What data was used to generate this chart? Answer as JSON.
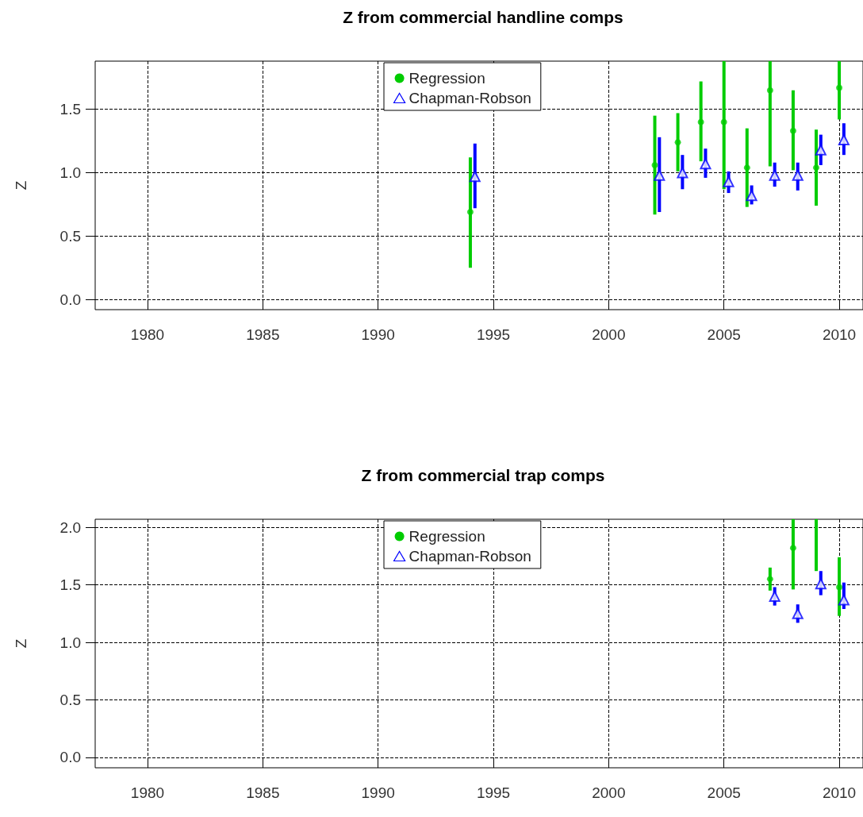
{
  "chart_data": [
    {
      "type": "scatter",
      "title": "Z from commercial handline comps",
      "ylabel": "Z",
      "xlim": [
        1977.73,
        2011.03
      ],
      "xticks": [
        1980,
        1985,
        1990,
        1995,
        2000,
        2005,
        2010
      ],
      "ylim": [
        -0.08,
        1.88
      ],
      "yticks": [
        {
          "value": 0,
          "label": "0.0"
        },
        {
          "value": 0.5,
          "label": "0.5"
        },
        {
          "value": 1,
          "label": "1.0"
        },
        {
          "value": 1.5,
          "label": "1.5"
        }
      ],
      "grid": true,
      "legend": "top",
      "line_style": "dashed",
      "series": [
        {
          "name": "Regression",
          "color": "#00cc00",
          "marker": "circle",
          "x": [
            1994,
            2002,
            2003,
            2004,
            2005,
            2006,
            2007,
            2008,
            2009,
            2010
          ],
          "values": [
            0.69,
            1.06,
            1.24,
            1.4,
            1.4,
            1.04,
            1.65,
            1.33,
            1.04,
            1.67
          ],
          "errors": [
            [
              0.25,
              1.12
            ],
            [
              0.67,
              1.45
            ],
            [
              1.01,
              1.47
            ],
            [
              1.09,
              1.72
            ],
            [
              0.87,
              1.88
            ],
            [
              0.73,
              1.35
            ],
            [
              1.05,
              1.88
            ],
            [
              1.02,
              1.65
            ],
            [
              0.74,
              1.34
            ],
            [
              1.42,
              1.88
            ]
          ]
        },
        {
          "name": "Chapman-Robson",
          "color": "#0000ff",
          "marker": "triangle",
          "x": [
            1994.2,
            2002.2,
            2003.2,
            2004.2,
            2005.2,
            2006.2,
            2007.2,
            2008.2,
            2009.2,
            2010.2
          ],
          "values": [
            0.97,
            0.98,
            1.0,
            1.07,
            0.93,
            0.82,
            0.98,
            0.98,
            1.18,
            1.26
          ],
          "errors": [
            [
              0.72,
              1.23
            ],
            [
              0.69,
              1.28
            ],
            [
              0.87,
              1.14
            ],
            [
              0.96,
              1.19
            ],
            [
              0.84,
              1.01
            ],
            [
              0.75,
              0.9
            ],
            [
              0.89,
              1.08
            ],
            [
              0.86,
              1.08
            ],
            [
              1.06,
              1.3
            ],
            [
              1.14,
              1.39
            ]
          ]
        }
      ]
    },
    {
      "type": "scatter",
      "title": "Z from commercial trap comps",
      "ylabel": "Z",
      "xlim": [
        1977.73,
        2011.03
      ],
      "xticks": [
        1980,
        1985,
        1990,
        1995,
        2000,
        2005,
        2010
      ],
      "ylim": [
        -0.09,
        2.07
      ],
      "yticks": [
        {
          "value": 0,
          "label": "0.0"
        },
        {
          "value": 0.5,
          "label": "0.5"
        },
        {
          "value": 1,
          "label": "1.0"
        },
        {
          "value": 1.5,
          "label": "1.5"
        },
        {
          "value": 2,
          "label": "2.0"
        }
      ],
      "grid": true,
      "legend": "top",
      "line_style": "dashed",
      "series": [
        {
          "name": "Regression",
          "color": "#00cc00",
          "marker": "circle",
          "x": [
            2007,
            2008,
            2010
          ],
          "values": [
            1.55,
            1.82,
            1.48
          ],
          "errors": [
            [
              1.45,
              1.65
            ],
            [
              1.46,
              2.07
            ],
            [
              1.23,
              1.74
            ]
          ]
        },
        {
          "type": "line",
          "color": "#00cc00",
          "marker": "none",
          "line_style": "solid",
          "x": [
            2009,
            2009
          ],
          "values": [
            1.62,
            2.07
          ]
        },
        {
          "name": "Chapman-Robson",
          "color": "#0000ff",
          "marker": "triangle",
          "x": [
            2007.2,
            2008.2,
            2009.2,
            2010.2
          ],
          "values": [
            1.4,
            1.25,
            1.51,
            1.37
          ],
          "errors": [
            [
              1.32,
              1.48
            ],
            [
              1.17,
              1.33
            ],
            [
              1.41,
              1.62
            ],
            [
              1.29,
              1.52
            ]
          ]
        }
      ]
    }
  ]
}
